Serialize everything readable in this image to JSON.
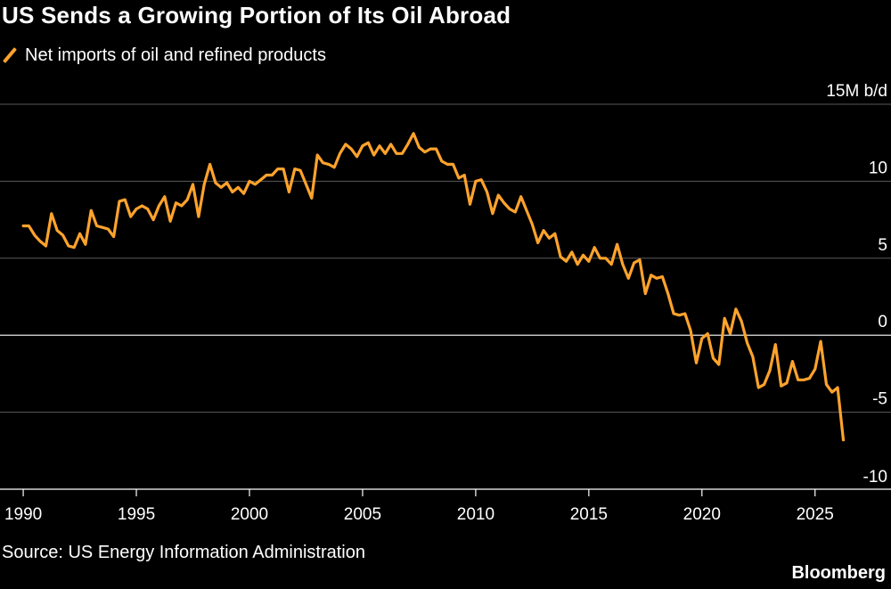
{
  "header": {
    "title": "US Sends a Growing Portion of Its Oil Abroad"
  },
  "footer": {
    "source": "Source: US Energy Information Administration",
    "brand": "Bloomberg"
  },
  "colors": {
    "background": "#000000",
    "line": "#ffa32c",
    "gridline": "#5a5a5a",
    "zero_line": "#ffffff",
    "text": "#ffffff"
  },
  "chart_data": {
    "type": "line",
    "title": "US Sends a Growing Portion of Its Oil Abroad",
    "xlabel": "",
    "ylabel": "15M b/d",
    "xlim": [
      1989.8,
      2026.9
    ],
    "ylim": [
      -10,
      15
    ],
    "legend_position": "top-left",
    "grid": true,
    "x_ticks": [
      1990,
      1995,
      2000,
      2005,
      2010,
      2015,
      2020,
      2025
    ],
    "x_tick_labels": [
      "1990",
      "1995",
      "2000",
      "2005",
      "2010",
      "2015",
      "2020",
      "2025"
    ],
    "y_ticks": [
      15,
      10,
      5,
      0,
      -5,
      -10
    ],
    "y_tick_labels": [
      "15M b/d",
      "10",
      "5",
      "0",
      "-5",
      "-10"
    ],
    "series": [
      {
        "name": "Net imports of oil and refined products",
        "color": "#ffa32c",
        "x": [
          1990.0,
          1990.25,
          1990.5,
          1990.75,
          1991.0,
          1991.25,
          1991.5,
          1991.75,
          1992.0,
          1992.25,
          1992.5,
          1992.75,
          1993.0,
          1993.25,
          1993.5,
          1993.75,
          1994.0,
          1994.25,
          1994.5,
          1994.75,
          1995.0,
          1995.25,
          1995.5,
          1995.75,
          1996.0,
          1996.25,
          1996.5,
          1996.75,
          1997.0,
          1997.25,
          1997.5,
          1997.75,
          1998.0,
          1998.25,
          1998.5,
          1998.75,
          1999.0,
          1999.25,
          1999.5,
          1999.75,
          2000.0,
          2000.25,
          2000.5,
          2000.75,
          2001.0,
          2001.25,
          2001.5,
          2001.75,
          2002.0,
          2002.25,
          2002.5,
          2002.75,
          2003.0,
          2003.25,
          2003.5,
          2003.75,
          2004.0,
          2004.25,
          2004.5,
          2004.75,
          2005.0,
          2005.25,
          2005.5,
          2005.75,
          2006.0,
          2006.25,
          2006.5,
          2006.75,
          2007.0,
          2007.25,
          2007.5,
          2007.75,
          2008.0,
          2008.25,
          2008.5,
          2008.75,
          2009.0,
          2009.25,
          2009.5,
          2009.75,
          2010.0,
          2010.25,
          2010.5,
          2010.75,
          2011.0,
          2011.25,
          2011.5,
          2011.75,
          2012.0,
          2012.25,
          2012.5,
          2012.75,
          2013.0,
          2013.25,
          2013.5,
          2013.75,
          2014.0,
          2014.25,
          2014.5,
          2014.75,
          2015.0,
          2015.25,
          2015.5,
          2015.75,
          2016.0,
          2016.25,
          2016.5,
          2016.75,
          2017.0,
          2017.25,
          2017.5,
          2017.75,
          2018.0,
          2018.25,
          2018.5,
          2018.75,
          2019.0,
          2019.25,
          2019.5,
          2019.75,
          2020.0,
          2020.25,
          2020.5,
          2020.75,
          2021.0,
          2021.25,
          2021.5,
          2021.75,
          2022.0,
          2022.25,
          2022.5,
          2022.75,
          2023.0,
          2023.25,
          2023.5,
          2023.75,
          2024.0,
          2024.25,
          2024.5,
          2024.75,
          2025.0,
          2025.25,
          2025.5,
          2025.75,
          2026.0,
          2026.25
        ],
        "values": [
          7.1,
          7.1,
          6.5,
          6.1,
          5.8,
          7.9,
          6.8,
          6.5,
          5.8,
          5.7,
          6.6,
          5.9,
          8.1,
          7.1,
          7.0,
          6.9,
          6.4,
          8.7,
          8.8,
          7.7,
          8.2,
          8.4,
          8.2,
          7.5,
          8.4,
          9.0,
          7.4,
          8.6,
          8.4,
          8.8,
          9.8,
          7.7,
          9.8,
          11.1,
          9.9,
          9.6,
          9.9,
          9.3,
          9.6,
          9.2,
          10.0,
          9.8,
          10.1,
          10.4,
          10.4,
          10.8,
          10.8,
          9.3,
          10.8,
          10.7,
          9.8,
          8.9,
          11.7,
          11.2,
          11.1,
          10.9,
          11.8,
          12.4,
          12.1,
          11.6,
          12.3,
          12.5,
          11.7,
          12.3,
          11.8,
          12.4,
          11.8,
          11.8,
          12.4,
          13.1,
          12.2,
          11.9,
          12.1,
          12.1,
          11.3,
          11.1,
          11.1,
          10.2,
          10.4,
          8.5,
          10.0,
          10.1,
          9.3,
          7.9,
          9.1,
          8.6,
          8.2,
          8.0,
          9.0,
          8.1,
          7.2,
          6.0,
          6.8,
          6.3,
          6.6,
          5.1,
          4.8,
          5.4,
          4.6,
          5.2,
          4.8,
          5.7,
          5.0,
          5.0,
          4.6,
          5.9,
          4.6,
          3.7,
          4.7,
          4.9,
          2.7,
          3.9,
          3.7,
          3.8,
          2.7,
          1.4,
          1.3,
          1.4,
          0.3,
          -1.8,
          -0.2,
          0.1,
          -1.5,
          -1.9,
          1.1,
          0.1,
          1.7,
          0.9,
          -0.5,
          -1.4,
          -3.4,
          -3.2,
          -2.3,
          -0.6,
          -3.3,
          -3.1,
          -1.7,
          -2.9,
          -2.9,
          -2.8,
          -2.2,
          -0.4,
          -3.2,
          -3.7,
          -3.4,
          -6.8
        ]
      }
    ]
  }
}
